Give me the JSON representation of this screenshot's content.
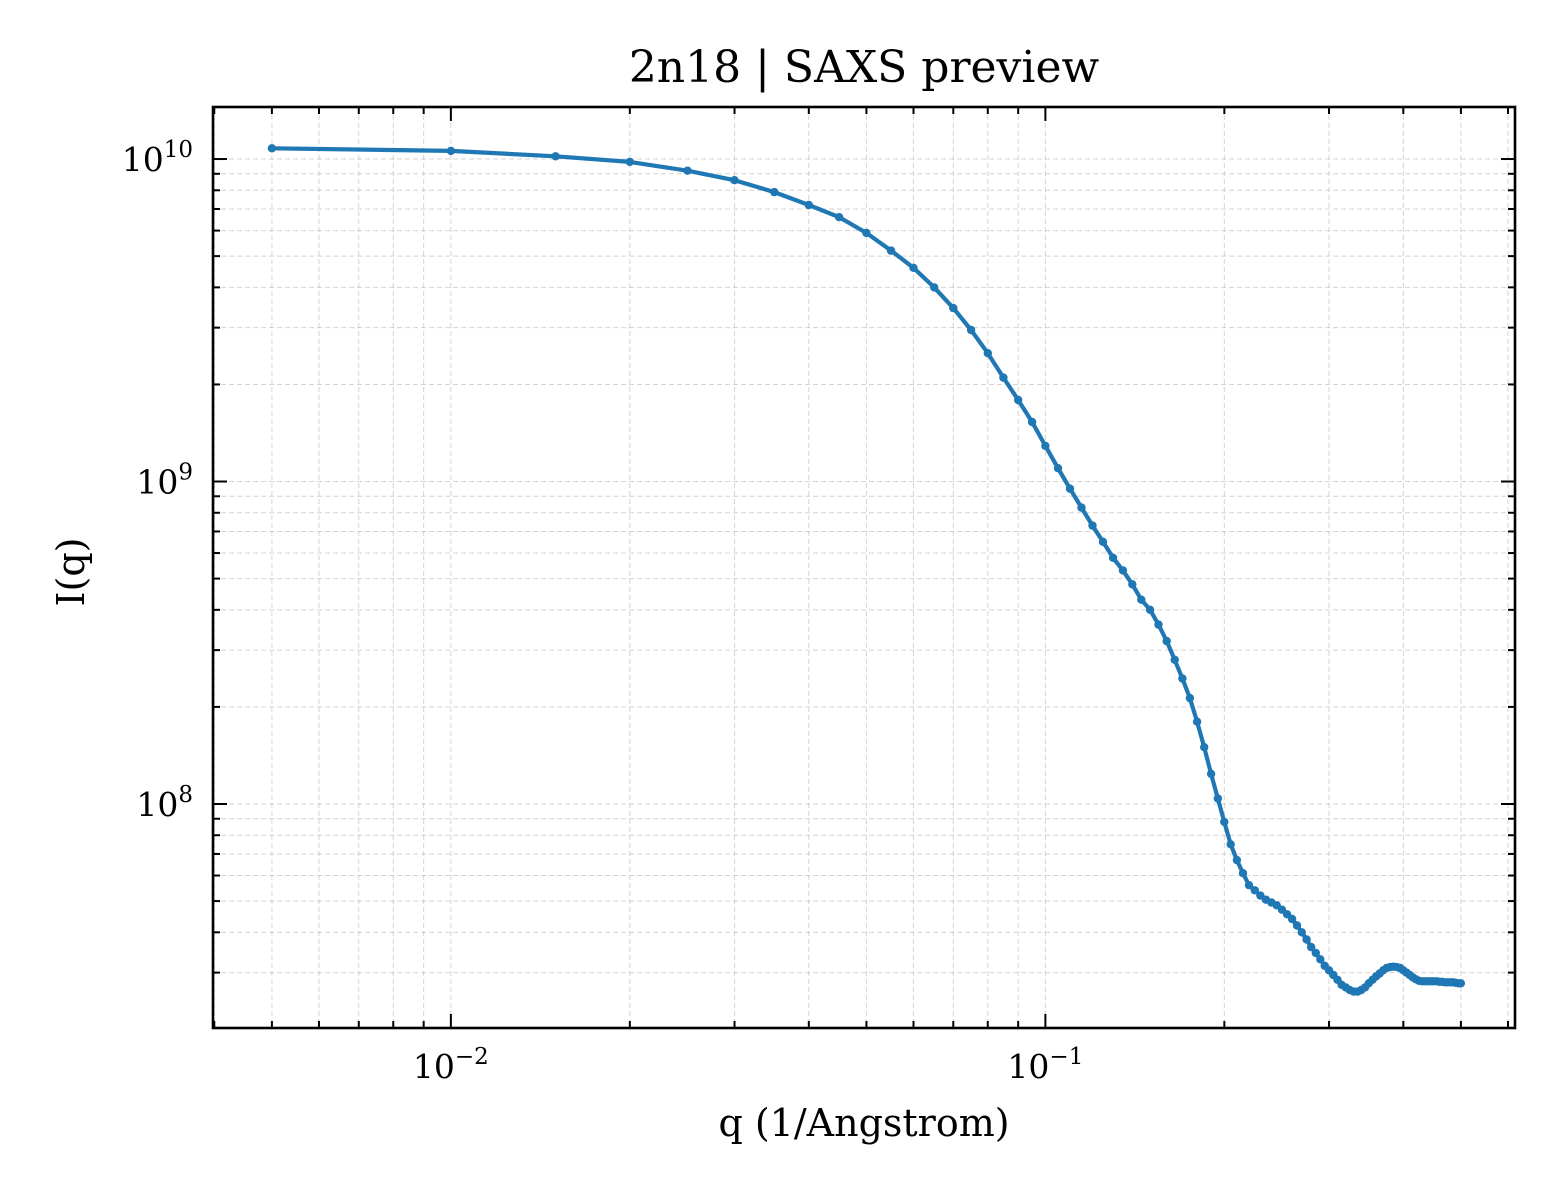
{
  "chart_data": {
    "type": "line",
    "title": "2n18 | SAXS preview",
    "xlabel": "q (1/Angstrom)",
    "ylabel": "I(q)",
    "xscale": "log",
    "yscale": "log",
    "xlim": [
      0.00398,
      0.6165
    ],
    "ylim": [
      20200000,
      14500000000
    ],
    "grid": true,
    "line_color": "#1f77b4",
    "xticks": [
      {
        "base": "10",
        "exp": "−2",
        "value": 0.01
      },
      {
        "base": "10",
        "exp": "−1",
        "value": 0.1
      }
    ],
    "yticks": [
      {
        "base": "10",
        "exp": "8",
        "value": 100000000
      },
      {
        "base": "10",
        "exp": "9",
        "value": 1000000000
      },
      {
        "base": "10",
        "exp": "10",
        "value": 10000000000
      }
    ],
    "series": [
      {
        "x": [
          0.005,
          0.01,
          0.015,
          0.02,
          0.025,
          0.03,
          0.035,
          0.04,
          0.045,
          0.05,
          0.055,
          0.06,
          0.065,
          0.07,
          0.075,
          0.08,
          0.085,
          0.09,
          0.095,
          0.1,
          0.105,
          0.11,
          0.115,
          0.12,
          0.125,
          0.13,
          0.135,
          0.14,
          0.145,
          0.15,
          0.155,
          0.16,
          0.165,
          0.17,
          0.175,
          0.18,
          0.185,
          0.19,
          0.195,
          0.2,
          0.205,
          0.21,
          0.215,
          0.22,
          0.225,
          0.23,
          0.235,
          0.24,
          0.245,
          0.25,
          0.255,
          0.26,
          0.265,
          0.27,
          0.275,
          0.28,
          0.285,
          0.29,
          0.295,
          0.3,
          0.305,
          0.31,
          0.315,
          0.32,
          0.325,
          0.33,
          0.335,
          0.34,
          0.345,
          0.35,
          0.355,
          0.36,
          0.365,
          0.37,
          0.375,
          0.38,
          0.385,
          0.39,
          0.395,
          0.4,
          0.405,
          0.41,
          0.415,
          0.42,
          0.425,
          0.43,
          0.435,
          0.44,
          0.445,
          0.45,
          0.455,
          0.46,
          0.465,
          0.47,
          0.475,
          0.48,
          0.485,
          0.49,
          0.495,
          0.5
        ],
        "y": [
          10800000000,
          10600000000,
          10200000000,
          9800000000,
          9200000000,
          8600000000,
          7900000000,
          7200000000,
          6600000000,
          5900000000,
          5200000000,
          4600000000,
          4000000000,
          3450000000,
          2950000000,
          2500000000,
          2100000000,
          1790000000,
          1530000000,
          1290000000,
          1100000000,
          950000000,
          830000000,
          730000000,
          650000000,
          580000000,
          530000000,
          480000000,
          430000000,
          400000000,
          360000000,
          320000000,
          280000000,
          245000000,
          213000000,
          180000000,
          150000000,
          124000000,
          104000000,
          88000000,
          75000000,
          67000000,
          61000000,
          56000000,
          54000000,
          52000000,
          50500000,
          49500000,
          48500000,
          47000000,
          45500000,
          44000000,
          42000000,
          40000000,
          38000000,
          36000000,
          34500000,
          33000000,
          31500000,
          30500000,
          29500000,
          28500000,
          27500000,
          27000000,
          26500000,
          26200000,
          26200000,
          26500000,
          27000000,
          27800000,
          28500000,
          29200000,
          29800000,
          30500000,
          31000000,
          31200000,
          31300000,
          31200000,
          31000000,
          30500000,
          30000000,
          29500000,
          29000000,
          28600000,
          28300000,
          28200000,
          28200000,
          28200000,
          28200000,
          28200000,
          28200000,
          28100000,
          28100000,
          28000000,
          28000000,
          28000000,
          28000000,
          27900000,
          27800000,
          27800000
        ]
      }
    ]
  }
}
